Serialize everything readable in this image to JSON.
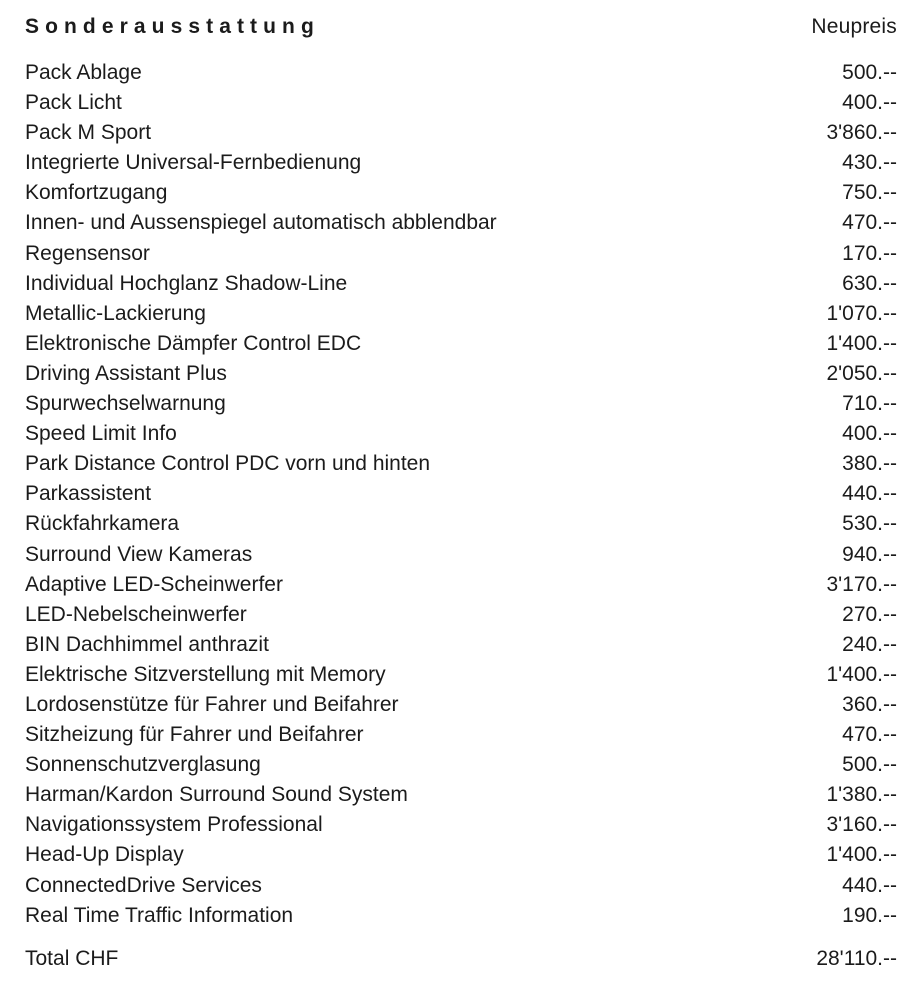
{
  "header": {
    "title": "Sonderausstattung",
    "price_column_label": "Neupreis"
  },
  "currency_note": "CHF",
  "items": [
    {
      "label": "Pack Ablage",
      "price": "500.--"
    },
    {
      "label": "Pack Licht",
      "price": "400.--"
    },
    {
      "label": "Pack M Sport",
      "price": "3'860.--"
    },
    {
      "label": "Integrierte Universal-Fernbedienung",
      "price": "430.--"
    },
    {
      "label": "Komfortzugang",
      "price": "750.--"
    },
    {
      "label": "Innen- und Aussenspiegel automatisch abblendbar",
      "price": "470.--"
    },
    {
      "label": "Regensensor",
      "price": "170.--"
    },
    {
      "label": "Individual Hochglanz Shadow-Line",
      "price": "630.--"
    },
    {
      "label": "Metallic-Lackierung",
      "price": "1'070.--"
    },
    {
      "label": "Elektronische Dämpfer Control EDC",
      "price": "1'400.--"
    },
    {
      "label": "Driving Assistant Plus",
      "price": "2'050.--"
    },
    {
      "label": "Spurwechselwarnung",
      "price": "710.--"
    },
    {
      "label": "Speed Limit Info",
      "price": "400.--"
    },
    {
      "label": "Park Distance Control PDC vorn und hinten",
      "price": "380.--"
    },
    {
      "label": "Parkassistent",
      "price": "440.--"
    },
    {
      "label": "Rückfahrkamera",
      "price": "530.--"
    },
    {
      "label": "Surround View Kameras",
      "price": "940.--"
    },
    {
      "label": "Adaptive LED-Scheinwerfer",
      "price": "3'170.--"
    },
    {
      "label": "LED-Nebelscheinwerfer",
      "price": "270.--"
    },
    {
      "label": "BIN Dachhimmel anthrazit",
      "price": "240.--"
    },
    {
      "label": "Elektrische Sitzverstellung mit Memory",
      "price": "1'400.--"
    },
    {
      "label": "Lordosenstütze für Fahrer und Beifahrer",
      "price": "360.--"
    },
    {
      "label": "Sitzheizung für Fahrer und Beifahrer",
      "price": "470.--"
    },
    {
      "label": "Sonnenschutzverglasung",
      "price": "500.--"
    },
    {
      "label": "Harman/Kardon Surround Sound System",
      "price": "1'380.--"
    },
    {
      "label": "Navigationssystem Professional",
      "price": "3'160.--"
    },
    {
      "label": "Head-Up Display",
      "price": "1'400.--"
    },
    {
      "label": "ConnectedDrive Services",
      "price": "440.--"
    },
    {
      "label": "Real Time Traffic Information",
      "price": "190.--"
    }
  ],
  "total": {
    "label": "Total CHF",
    "price": "28'110.--"
  },
  "colors": {
    "text": "#1b1b1b",
    "background": "#ffffff"
  }
}
